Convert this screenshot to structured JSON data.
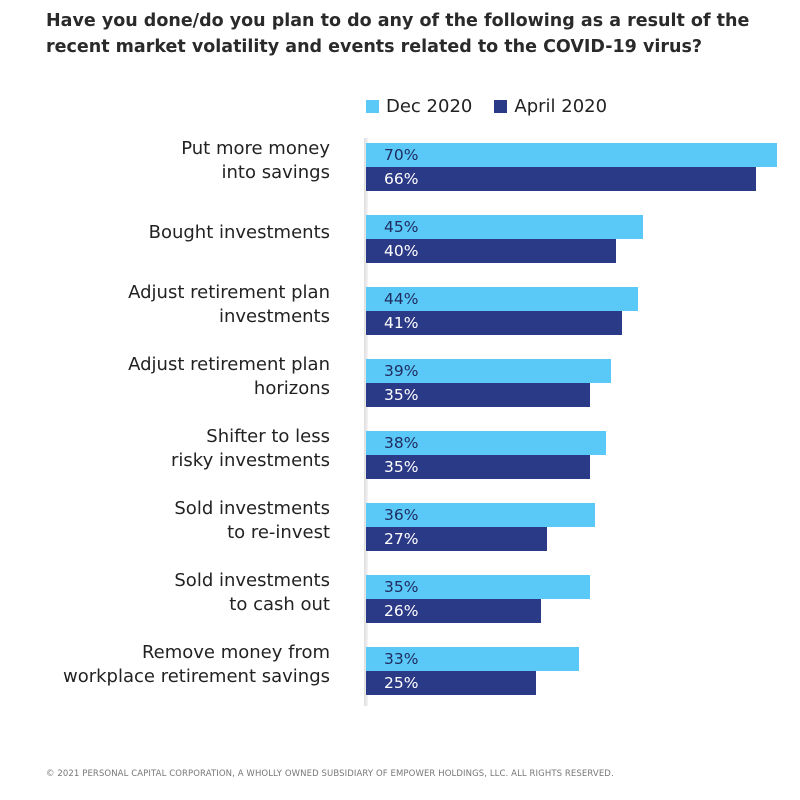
{
  "chart_data": {
    "type": "bar",
    "orientation": "horizontal",
    "title": "Have you done/do you plan to do any of the following as a result of the recent market volatility and events related to the COVID-19 virus?",
    "categories": [
      "Put more money\ninto savings",
      "Bought investments",
      "Adjust retirement plan\ninvestments",
      "Adjust retirement plan\nhorizons",
      "Shifter to less\nrisky investments",
      "Sold investments\nto re-invest",
      "Sold investments\nto cash out",
      "Remove money from\nworkplace retirement savings"
    ],
    "series": [
      {
        "name": "Dec 2020",
        "color": "#5BC9F8",
        "label_color": "#1f2b5e",
        "values": [
          70,
          45,
          44,
          39,
          38,
          36,
          35,
          33
        ]
      },
      {
        "name": "April 2020",
        "color": "#2B3A87",
        "label_color": "#ffffff",
        "values": [
          66,
          40,
          41,
          35,
          35,
          27,
          26,
          25
        ]
      }
    ],
    "value_suffix": "%",
    "legend": "top",
    "grid": false
  },
  "footer": "© 2021 PERSONAL CAPITAL CORPORATION, A WHOLLY OWNED SUBSIDIARY OF EMPOWER HOLDINGS, LLC. ALL RIGHTS RESERVED."
}
